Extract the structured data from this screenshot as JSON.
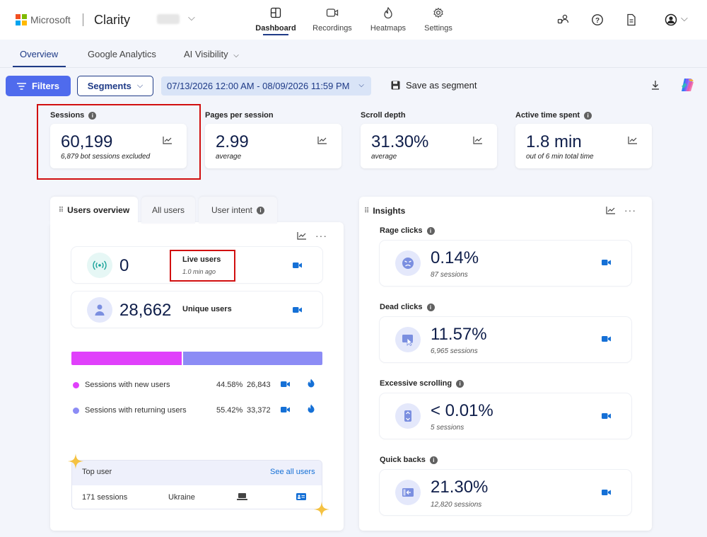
{
  "brand": {
    "company": "Microsoft",
    "product": "Clarity",
    "ms_colors": [
      "#f25022",
      "#7fba00",
      "#00a4ef",
      "#ffb900"
    ]
  },
  "nav": [
    {
      "label": "Dashboard",
      "icon": "dashboard-icon",
      "active": true
    },
    {
      "label": "Recordings",
      "icon": "video-icon"
    },
    {
      "label": "Heatmaps",
      "icon": "flame-icon"
    },
    {
      "label": "Settings",
      "icon": "gear-icon"
    }
  ],
  "subtabs": {
    "overview": "Overview",
    "ga": "Google Analytics",
    "ai": "AI Visibility"
  },
  "toolbar": {
    "filters": "Filters",
    "segments": "Segments",
    "daterange": "07/13/2026 12:00 AM - 08/09/2026 11:59 PM",
    "save_segment": "Save as segment"
  },
  "metrics": {
    "sessions": {
      "title": "Sessions",
      "value": "60,199",
      "sub": "6,879 bot sessions excluded"
    },
    "pages": {
      "title": "Pages per session",
      "value": "2.99",
      "sub": "average"
    },
    "scroll": {
      "title": "Scroll depth",
      "value": "31.30%",
      "sub": "average"
    },
    "active": {
      "title": "Active time spent",
      "value": "1.8 min",
      "sub": "out of 6 min total time"
    }
  },
  "users_panel": {
    "tabs": {
      "overview": "Users overview",
      "all": "All users",
      "intent": "User intent"
    },
    "live": {
      "value": "0",
      "label": "Live users",
      "sub": "1.0 min ago"
    },
    "unique": {
      "value": "28,662",
      "label": "Unique users"
    },
    "bar": {
      "new_fraction": 0.4458,
      "new_color": "#e040fb",
      "returning_color": "#8c8cf5"
    },
    "new": {
      "label": "Sessions with new users",
      "pct": "44.58%",
      "count": "26,843"
    },
    "returning": {
      "label": "Sessions with returning users",
      "pct": "55.42%",
      "count": "33,372"
    },
    "top_user": {
      "title": "Top user",
      "see_all": "See all users",
      "sessions": "171 sessions",
      "country": "Ukraine"
    }
  },
  "insights": {
    "title": "Insights",
    "items": [
      {
        "title": "Rage clicks",
        "value": "0.14%",
        "sub": "87 sessions",
        "icon": "angry-face-icon"
      },
      {
        "title": "Dead clicks",
        "value": "11.57%",
        "sub": "6,965 sessions",
        "icon": "cursor-click-icon"
      },
      {
        "title": "Excessive scrolling",
        "value": "< 0.01%",
        "sub": "5 sessions",
        "icon": "scroll-icon"
      },
      {
        "title": "Quick backs",
        "value": "21.30%",
        "sub": "12,820 sessions",
        "icon": "back-arrow-icon"
      }
    ]
  }
}
